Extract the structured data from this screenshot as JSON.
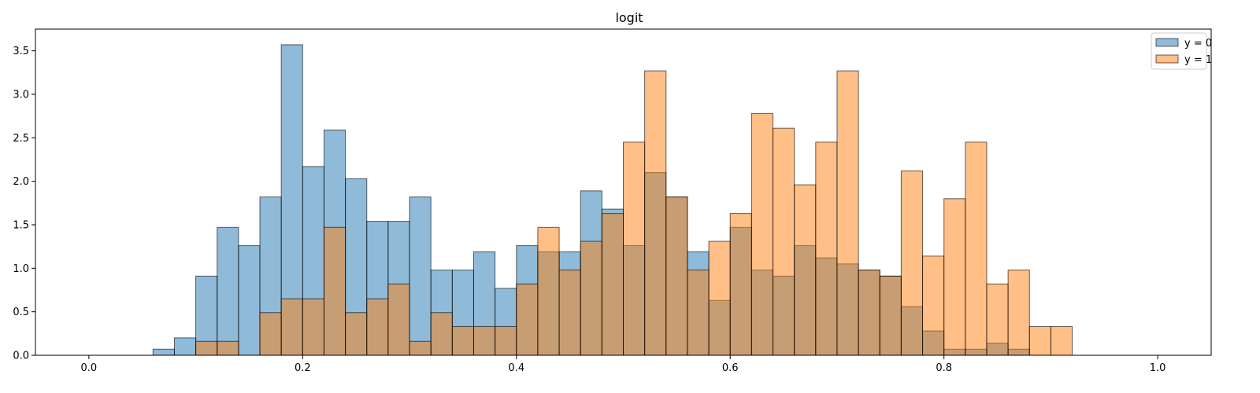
{
  "chart_data": {
    "type": "histogram",
    "title": "logit",
    "xlabel": "",
    "ylabel": "",
    "xlim": [
      -0.05,
      1.05
    ],
    "ylim": [
      0,
      3.75
    ],
    "bin_width": 0.02,
    "bin_start": 0.02,
    "xticks": [
      "0.0",
      "0.2",
      "0.4",
      "0.6",
      "0.8",
      "1.0"
    ],
    "yticks": [
      "0.0",
      "0.5",
      "1.0",
      "1.5",
      "2.0",
      "2.5",
      "3.0",
      "3.5"
    ],
    "legend_position": "top-right",
    "grid": false,
    "series": [
      {
        "name": "y = 0",
        "color": "#1f77b4",
        "alpha": 0.5,
        "values": [
          0,
          0,
          0.07,
          0.2,
          0.91,
          1.47,
          1.26,
          1.82,
          3.57,
          2.17,
          2.59,
          2.03,
          1.54,
          1.54,
          1.82,
          0.98,
          0.98,
          1.19,
          0.77,
          1.26,
          1.19,
          1.19,
          1.89,
          1.68,
          1.26,
          2.1,
          1.82,
          1.19,
          0.63,
          1.47,
          0.98,
          0.91,
          1.26,
          1.12,
          1.05,
          0.98,
          0.91,
          0.56,
          0.28,
          0.07,
          0.07,
          0.14,
          0.07,
          0,
          0,
          0,
          0,
          0,
          0,
          0
        ]
      },
      {
        "name": "y = 1",
        "color": "#ff7f0e",
        "alpha": 0.5,
        "values": [
          0,
          0,
          0,
          0,
          0.16,
          0.16,
          0,
          0.49,
          0.65,
          0.65,
          1.47,
          0.49,
          0.65,
          0.82,
          0.16,
          0.49,
          0.33,
          0.33,
          0.33,
          0.82,
          1.47,
          0.98,
          1.31,
          1.63,
          2.45,
          3.27,
          1.82,
          0.98,
          1.31,
          1.63,
          2.78,
          2.61,
          1.96,
          2.45,
          3.27,
          0.98,
          0.91,
          2.12,
          1.14,
          1.8,
          2.45,
          0.82,
          0.98,
          0.33,
          0.33,
          0,
          0,
          0,
          0,
          0
        ]
      }
    ]
  }
}
